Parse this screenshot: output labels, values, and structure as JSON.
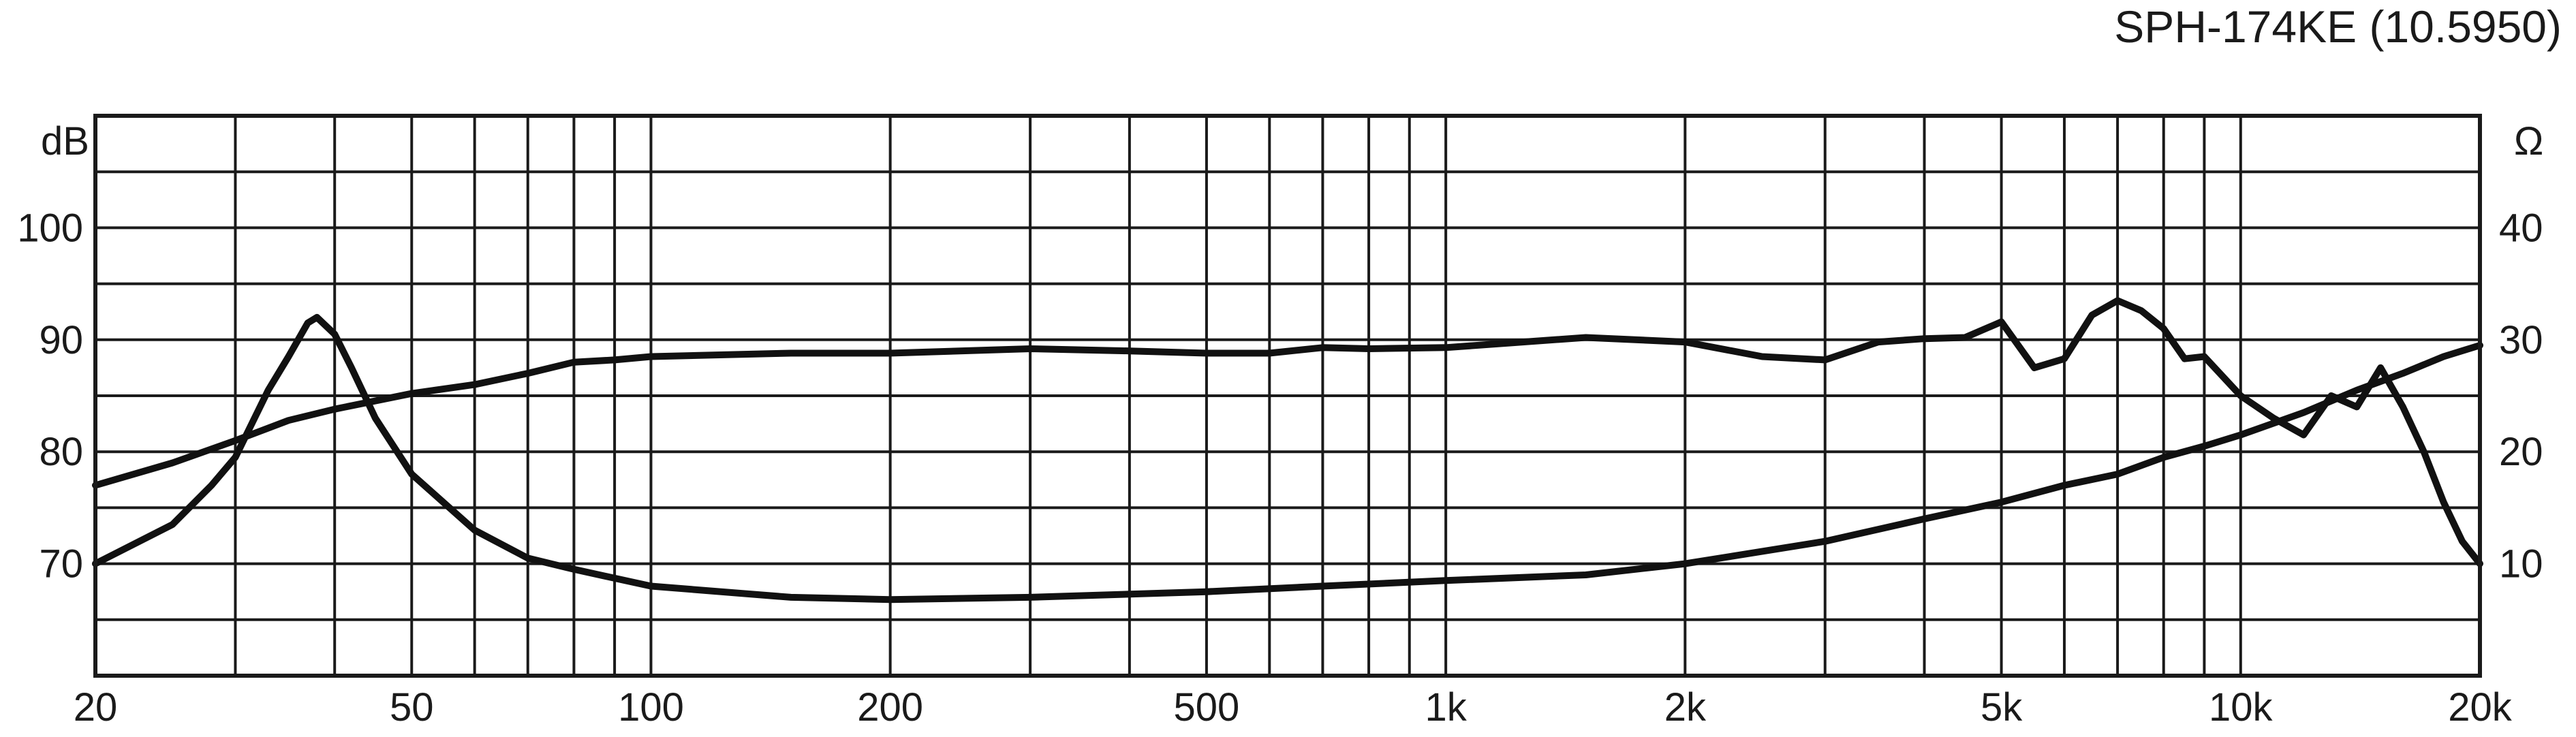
{
  "chart_data": {
    "type": "line",
    "title": "SPH-174KE (10.5950)",
    "x_scale": "log",
    "xlim": [
      20,
      20000
    ],
    "x_ticks": [
      {
        "value": 20,
        "label": "20"
      },
      {
        "value": 50,
        "label": "50"
      },
      {
        "value": 100,
        "label": "100"
      },
      {
        "value": 200,
        "label": "200"
      },
      {
        "value": 500,
        "label": "500"
      },
      {
        "value": 1000,
        "label": "1k"
      },
      {
        "value": 2000,
        "label": "2k"
      },
      {
        "value": 5000,
        "label": "5k"
      },
      {
        "value": 10000,
        "label": "10k"
      },
      {
        "value": 20000,
        "label": "20k"
      }
    ],
    "y_left": {
      "unit": "dB",
      "lim": [
        60,
        110
      ],
      "ticks": [
        {
          "value": 70,
          "label": "70"
        },
        {
          "value": 80,
          "label": "80"
        },
        {
          "value": 90,
          "label": "90"
        },
        {
          "value": 100,
          "label": "100"
        }
      ]
    },
    "y_right": {
      "unit": "Ω",
      "lim": [
        0,
        50
      ],
      "ticks": [
        {
          "value": 10,
          "label": "10"
        },
        {
          "value": 20,
          "label": "20"
        },
        {
          "value": 30,
          "label": "30"
        },
        {
          "value": 40,
          "label": "40"
        }
      ]
    },
    "grid": true,
    "series": [
      {
        "axis": "left",
        "x": [
          20,
          25,
          30,
          35,
          40,
          50,
          60,
          70,
          80,
          90,
          100,
          150,
          200,
          300,
          400,
          500,
          600,
          700,
          800,
          1000,
          1500,
          2000,
          2500,
          3000,
          3500,
          4000,
          4500,
          5000,
          5500,
          6000,
          6500,
          7000,
          7500,
          8000,
          8500,
          9000,
          10000,
          11000,
          12000,
          13000,
          14000,
          15000,
          16000,
          17000,
          18000,
          19000,
          20000
        ],
        "values": [
          77,
          79,
          81,
          82.8,
          83.8,
          85.2,
          86,
          87,
          88,
          88.2,
          88.5,
          88.8,
          88.8,
          89.2,
          89,
          88.8,
          88.8,
          89.3,
          89.2,
          89.3,
          90.2,
          89.8,
          88.5,
          88.2,
          89.8,
          90.1,
          90.2,
          91.6,
          87.5,
          88.3,
          92.2,
          93.5,
          92.6,
          91,
          88.3,
          88.5,
          85,
          83,
          81.5,
          85,
          84,
          87.5,
          84,
          80,
          75.5,
          72,
          70
        ]
      },
      {
        "axis": "right",
        "x": [
          20,
          25,
          28,
          30,
          33,
          35,
          37,
          38,
          40,
          42,
          45,
          50,
          60,
          70,
          80,
          100,
          150,
          200,
          300,
          500,
          700,
          1000,
          1500,
          2000,
          3000,
          4000,
          5000,
          6000,
          7000,
          8000,
          9000,
          10000,
          12000,
          14000,
          16000,
          18000,
          20000
        ],
        "values": [
          10,
          13.5,
          17,
          19.5,
          25.5,
          28.5,
          31.5,
          32,
          30.5,
          27.5,
          23,
          18,
          13,
          10.5,
          9.5,
          8,
          7,
          6.8,
          7,
          7.5,
          8,
          8.5,
          9,
          10,
          12,
          14,
          15.5,
          17,
          18,
          19.5,
          20.5,
          21.5,
          23.5,
          25.5,
          27,
          28.5,
          29.5
        ]
      }
    ]
  }
}
